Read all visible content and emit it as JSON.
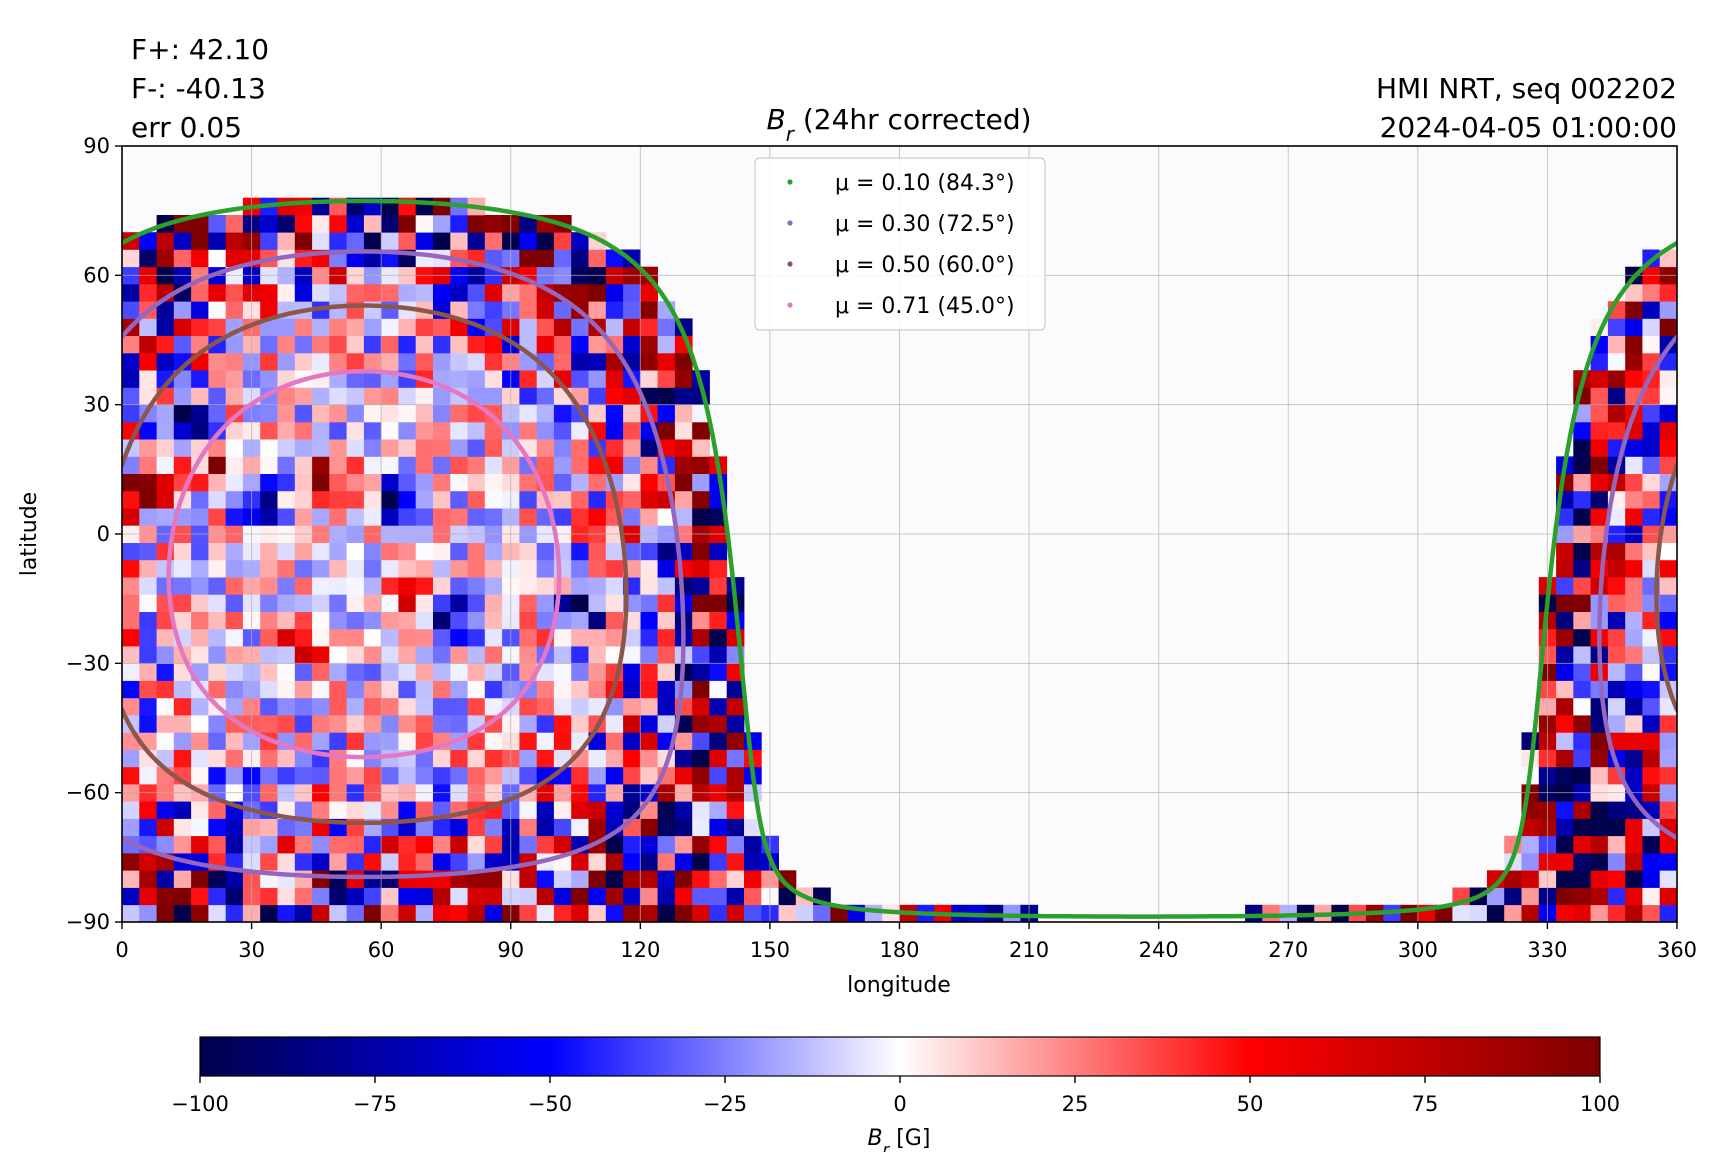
{
  "header": {
    "flux_positive": "F+: 42.10",
    "flux_negative": "F-: -40.13",
    "error": "err 0.05",
    "source": "HMI NRT, seq 002202",
    "timestamp": "2024-04-05 01:00:00"
  },
  "colors": {
    "mu_0_10": "#2ca02c",
    "mu_0_30": "#9467bd",
    "mu_0_50": "#8c564b",
    "mu_0_71": "#e377c2",
    "colormap": [
      "#00004c",
      "#0000ff",
      "#ffffff",
      "#ff0000",
      "#7f0000"
    ]
  },
  "chart_data": {
    "type": "heatmap",
    "title_symbol": "B",
    "title_sub": "r",
    "title_rest": " (24hr corrected)",
    "xlabel": "longitude",
    "ylabel": "latitude",
    "xlim": [
      0,
      360
    ],
    "ylim": [
      -90,
      90
    ],
    "xticks": [
      0,
      30,
      60,
      90,
      120,
      150,
      180,
      210,
      240,
      270,
      300,
      330,
      360
    ],
    "yticks": [
      90,
      60,
      30,
      0,
      -30,
      -60,
      -90
    ],
    "ytick_labels": [
      "90",
      "60",
      "30",
      "0",
      "−30",
      "−60",
      "−90"
    ],
    "grid": true,
    "disk_center": {
      "lon": 56,
      "lat": -7
    },
    "legend_position": "top-center",
    "legend": [
      {
        "label": "μ = 0.10 (84.3°)",
        "mu": 0.1,
        "angle_deg": 84.3,
        "color_key": "mu_0_10"
      },
      {
        "label": "μ = 0.30 (72.5°)",
        "mu": 0.3,
        "angle_deg": 72.5,
        "color_key": "mu_0_30"
      },
      {
        "label": "μ = 0.50 (60.0°)",
        "mu": 0.5,
        "angle_deg": 60.0,
        "color_key": "mu_0_50"
      },
      {
        "label": "μ = 0.71 (45.0°)",
        "mu": 0.71,
        "angle_deg": 45.0,
        "color_key": "mu_0_71"
      }
    ],
    "colorbar": {
      "min": -100,
      "max": 100,
      "ticks": [
        -100,
        -75,
        -50,
        -25,
        0,
        25,
        50,
        75,
        100
      ],
      "tick_labels": [
        "−100",
        "−75",
        "−50",
        "−25",
        "0",
        "25",
        "50",
        "75",
        "100"
      ],
      "label_symbol": "B",
      "label_sub": "r",
      "label_rest": " [G]"
    }
  }
}
